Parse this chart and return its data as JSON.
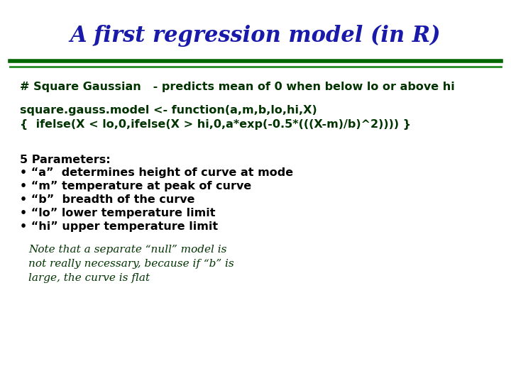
{
  "title": "A first regression model (in R)",
  "title_color": "#1a1aaa",
  "title_fontsize": 22,
  "bg_color": "#ffffff",
  "line1_color": "#006600",
  "line2_color": "#228B22",
  "comment_line": "# Square Gaussian   - predicts mean of 0 when below lo or above hi",
  "code_line1": "square.gauss.model <- function(a,m,b,lo,hi,X)",
  "code_line2": "{  ifelse(X < lo,0,ifelse(X > hi,0,a*exp(-0.5*(((X-m)/b)^2)))) }",
  "code_color": "#003300",
  "code_fontsize": 11.5,
  "params_header": "5 Parameters:",
  "params": [
    "• “a”  determines height of curve at mode",
    "• “m” temperature at peak of curve",
    "• “b”  breadth of the curve",
    "• “lo” lower temperature limit",
    "• “hi” upper temperature limit"
  ],
  "params_color": "#000000",
  "params_fontsize": 11.5,
  "note_lines": [
    "Note that a separate “null” model is",
    "not really necessary, because if “b” is",
    "large, the curve is flat"
  ],
  "note_color": "#003300",
  "note_fontsize": 11
}
